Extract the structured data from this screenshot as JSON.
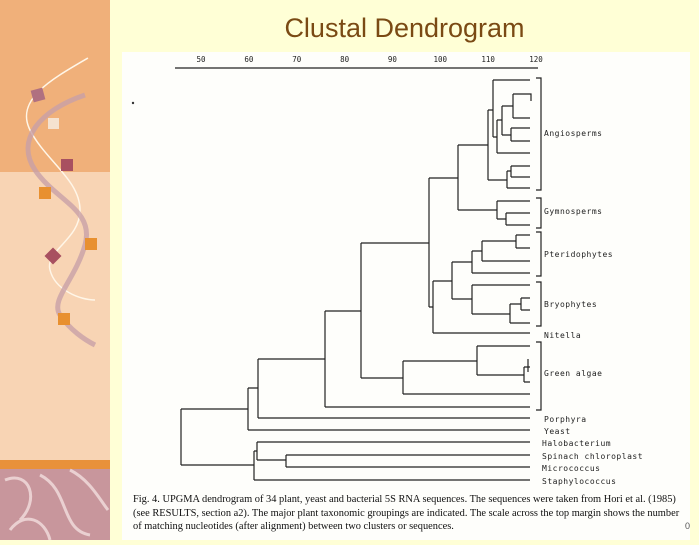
{
  "slide": {
    "title": "Clustal Dendrogram",
    "page_number": "0",
    "colors": {
      "background": "#ffffd6",
      "title": "#7a4a14",
      "panel_top": "#f0b07a",
      "panel_bottom": "#f8d4b4",
      "accent_stripe": "#e8913a"
    }
  },
  "figure": {
    "scale": {
      "ticks": [
        "50",
        "60",
        "70",
        "80",
        "90",
        "100",
        "110",
        "120"
      ]
    },
    "groups": [
      "Angiosperms",
      "Gymnosperms",
      "Pteridophytes",
      "Bryophytes",
      "Nitella",
      "Green algae",
      "Porphyra",
      "Yeast",
      "Halobacterium",
      "Spinach chloroplast",
      "Micrococcus",
      "Staphylococcus"
    ],
    "caption": "Fig. 4. UPGMA dendrogram of 34 plant, yeast and bacterial 5S RNA sequences. The sequences were taken from Hori et al. (1985) (see RESULTS, section a2). The major plant taxonomic groupings are indicated. The scale across the top margin shows the number of matching nucleotides (after alignment) between two clusters or sequences."
  }
}
